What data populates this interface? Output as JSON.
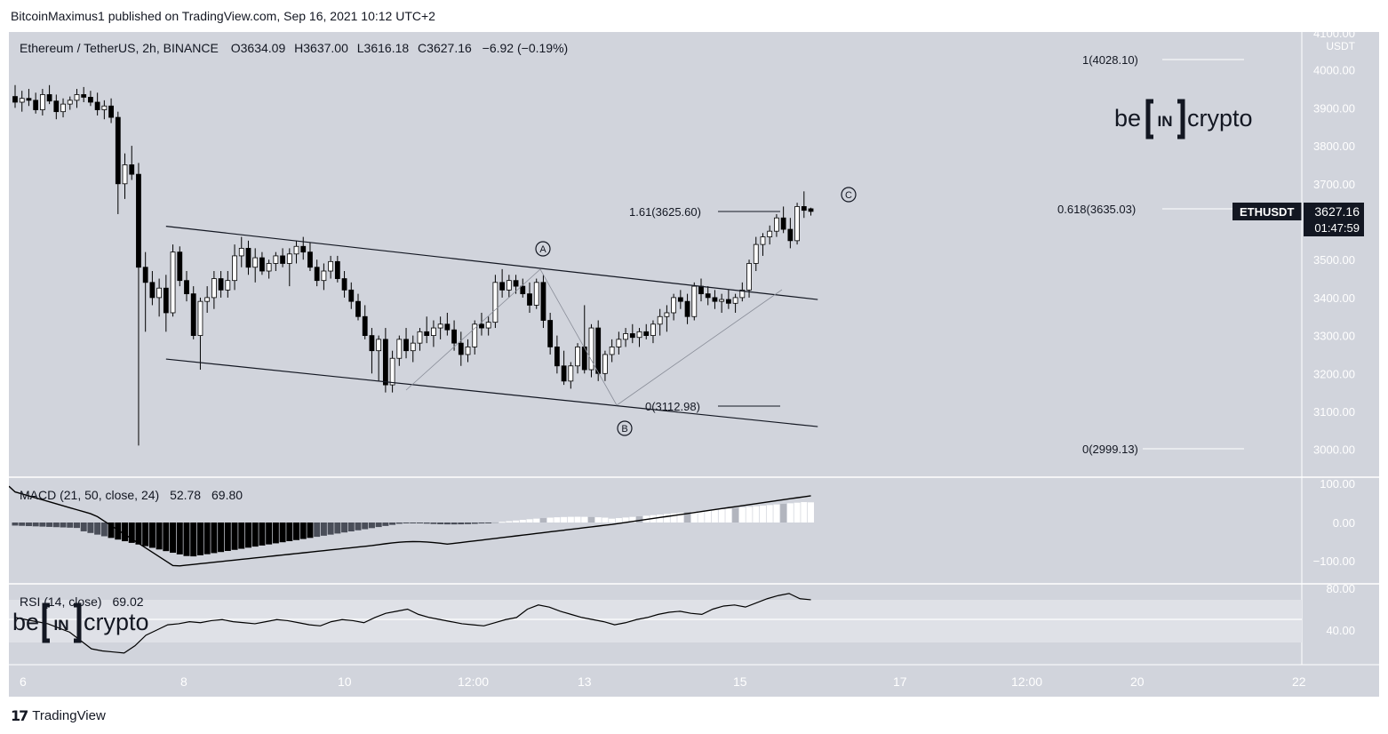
{
  "header": {
    "publisher": "BitcoinMaximus1 published on TradingView.com, Sep 16, 2021 10:12 UTC+2"
  },
  "legend": {
    "symbol": "Ethereum / TetherUS, 2h, BINANCE",
    "o_label": "O",
    "o": "3634.09",
    "h_label": "H",
    "h": "3637.00",
    "l_label": "L",
    "l": "3616.18",
    "c_label": "C",
    "c": "3627.16",
    "change": "−6.92 (−0.19%)"
  },
  "price_scale": {
    "currency": "USDT",
    "ticks": [
      "4100.00",
      "4000.00",
      "3900.00",
      "3800.00",
      "3700.00",
      "3600.00",
      "3500.00",
      "3400.00",
      "3300.00",
      "3200.00",
      "3100.00",
      "3000.00"
    ]
  },
  "price_tag": {
    "ticker": "ETHUSDT",
    "price": "3627.16",
    "countdown": "01:47:59"
  },
  "time_axis": {
    "labels": [
      "6",
      "8",
      "10",
      "12:00",
      "13",
      "15",
      "17",
      "12:00",
      "20",
      "22"
    ]
  },
  "fib_levels": {
    "right_1": "1(4028.10)",
    "right_0618": "0.618(3635.03)",
    "right_0": "0(2999.13)",
    "ext_161": "1.61(3625.60)",
    "ext_0": "0(3112.98)"
  },
  "waves": {
    "a": "A",
    "b": "B",
    "c": "C"
  },
  "brand": {
    "be": "be",
    "in": "IN",
    "crypto": "crypto"
  },
  "macd": {
    "label": "MACD (21, 50, close, 24)",
    "v1": "52.78",
    "v2": "69.80",
    "ticks": [
      "100.00",
      "0.00",
      "−100.00"
    ]
  },
  "rsi": {
    "label": "RSI (14, close)",
    "value": "69.02",
    "ticks": [
      "80.00",
      "40.00"
    ]
  },
  "footer": {
    "brand": "TradingView"
  },
  "colors": {
    "background": "#d1d4dc",
    "candle_up": "#ffffff",
    "candle_down": "#000000",
    "line": "#000000",
    "price_tag_bg": "#131722"
  },
  "chart_data": {
    "type": "candlestick",
    "interval": "2h",
    "ylim": [
      2950,
      4100
    ],
    "trend_lines": [
      {
        "from": [
          "Sep 7 16:00",
          3588
        ],
        "to": [
          "Sep 15 16:00",
          3395
        ]
      },
      {
        "from": [
          "Sep 7 16:00",
          3238
        ],
        "to": [
          "Sep 15 16:00",
          3060
        ]
      }
    ],
    "candles": [
      [
        3930,
        3960,
        3900,
        3915
      ],
      [
        3915,
        3945,
        3890,
        3925
      ],
      [
        3925,
        3950,
        3905,
        3920
      ],
      [
        3920,
        3940,
        3885,
        3895
      ],
      [
        3895,
        3950,
        3880,
        3935
      ],
      [
        3935,
        3960,
        3910,
        3918
      ],
      [
        3918,
        3935,
        3870,
        3890
      ],
      [
        3890,
        3925,
        3875,
        3910
      ],
      [
        3910,
        3930,
        3895,
        3920
      ],
      [
        3920,
        3950,
        3900,
        3935
      ],
      [
        3935,
        3955,
        3915,
        3928
      ],
      [
        3928,
        3945,
        3905,
        3915
      ],
      [
        3915,
        3940,
        3880,
        3895
      ],
      [
        3895,
        3920,
        3870,
        3905
      ],
      [
        3905,
        3925,
        3860,
        3875
      ],
      [
        3875,
        3890,
        3620,
        3700
      ],
      [
        3700,
        3780,
        3660,
        3750
      ],
      [
        3750,
        3800,
        3710,
        3725
      ],
      [
        3725,
        3755,
        3010,
        3480
      ],
      [
        3480,
        3520,
        3310,
        3440
      ],
      [
        3440,
        3470,
        3380,
        3400
      ],
      [
        3400,
        3450,
        3350,
        3425
      ],
      [
        3425,
        3460,
        3310,
        3360
      ],
      [
        3360,
        3540,
        3350,
        3520
      ],
      [
        3520,
        3535,
        3430,
        3445
      ],
      [
        3445,
        3470,
        3390,
        3410
      ],
      [
        3410,
        3430,
        3290,
        3300
      ],
      [
        3300,
        3400,
        3210,
        3390
      ],
      [
        3390,
        3430,
        3360,
        3400
      ],
      [
        3400,
        3470,
        3370,
        3450
      ],
      [
        3450,
        3470,
        3400,
        3420
      ],
      [
        3420,
        3470,
        3400,
        3445
      ],
      [
        3445,
        3540,
        3420,
        3510
      ],
      [
        3510,
        3560,
        3480,
        3530
      ],
      [
        3530,
        3550,
        3460,
        3480
      ],
      [
        3480,
        3530,
        3440,
        3505
      ],
      [
        3505,
        3520,
        3460,
        3470
      ],
      [
        3470,
        3500,
        3450,
        3490
      ],
      [
        3490,
        3520,
        3470,
        3510
      ],
      [
        3510,
        3530,
        3480,
        3490
      ],
      [
        3490,
        3530,
        3430,
        3515
      ],
      [
        3515,
        3550,
        3490,
        3535
      ],
      [
        3535,
        3560,
        3500,
        3520
      ],
      [
        3520,
        3545,
        3470,
        3480
      ],
      [
        3480,
        3500,
        3430,
        3445
      ],
      [
        3445,
        3490,
        3420,
        3470
      ],
      [
        3470,
        3510,
        3450,
        3495
      ],
      [
        3495,
        3510,
        3440,
        3450
      ],
      [
        3450,
        3470,
        3400,
        3420
      ],
      [
        3420,
        3440,
        3370,
        3390
      ],
      [
        3390,
        3410,
        3340,
        3350
      ],
      [
        3350,
        3380,
        3290,
        3300
      ],
      [
        3300,
        3320,
        3200,
        3260
      ],
      [
        3260,
        3300,
        3180,
        3290
      ],
      [
        3290,
        3320,
        3150,
        3170
      ],
      [
        3170,
        3260,
        3150,
        3240
      ],
      [
        3240,
        3300,
        3220,
        3290
      ],
      [
        3290,
        3320,
        3240,
        3260
      ],
      [
        3260,
        3300,
        3230,
        3280
      ],
      [
        3280,
        3320,
        3260,
        3310
      ],
      [
        3310,
        3350,
        3280,
        3300
      ],
      [
        3300,
        3340,
        3270,
        3320
      ],
      [
        3320,
        3350,
        3290,
        3330
      ],
      [
        3330,
        3360,
        3300,
        3315
      ],
      [
        3315,
        3340,
        3260,
        3280
      ],
      [
        3280,
        3310,
        3220,
        3250
      ],
      [
        3250,
        3290,
        3230,
        3270
      ],
      [
        3270,
        3340,
        3250,
        3330
      ],
      [
        3330,
        3360,
        3300,
        3320
      ],
      [
        3320,
        3350,
        3300,
        3335
      ],
      [
        3335,
        3460,
        3320,
        3440
      ],
      [
        3440,
        3475,
        3400,
        3420
      ],
      [
        3420,
        3460,
        3400,
        3445
      ],
      [
        3445,
        3460,
        3410,
        3430
      ],
      [
        3430,
        3450,
        3400,
        3410
      ],
      [
        3410,
        3440,
        3360,
        3380
      ],
      [
        3380,
        3450,
        3370,
        3440
      ],
      [
        3440,
        3460,
        3320,
        3340
      ],
      [
        3340,
        3360,
        3250,
        3270
      ],
      [
        3270,
        3300,
        3200,
        3220
      ],
      [
        3220,
        3260,
        3170,
        3180
      ],
      [
        3180,
        3230,
        3160,
        3220
      ],
      [
        3220,
        3280,
        3200,
        3270
      ],
      [
        3270,
        3380,
        3200,
        3210
      ],
      [
        3210,
        3330,
        3190,
        3320
      ],
      [
        3320,
        3340,
        3180,
        3200
      ],
      [
        3200,
        3260,
        3180,
        3250
      ],
      [
        3250,
        3290,
        3230,
        3270
      ],
      [
        3270,
        3310,
        3250,
        3290
      ],
      [
        3290,
        3320,
        3270,
        3305
      ],
      [
        3305,
        3330,
        3280,
        3295
      ],
      [
        3295,
        3320,
        3270,
        3310
      ],
      [
        3310,
        3330,
        3290,
        3300
      ],
      [
        3300,
        3340,
        3280,
        3330
      ],
      [
        3330,
        3370,
        3300,
        3350
      ],
      [
        3350,
        3380,
        3310,
        3360
      ],
      [
        3360,
        3410,
        3340,
        3400
      ],
      [
        3400,
        3420,
        3370,
        3390
      ],
      [
        3390,
        3410,
        3330,
        3350
      ],
      [
        3350,
        3440,
        3340,
        3430
      ],
      [
        3430,
        3450,
        3390,
        3410
      ],
      [
        3410,
        3430,
        3380,
        3400
      ],
      [
        3400,
        3420,
        3370,
        3390
      ],
      [
        3390,
        3410,
        3360,
        3395
      ],
      [
        3395,
        3420,
        3370,
        3385
      ],
      [
        3385,
        3410,
        3360,
        3400
      ],
      [
        3400,
        3440,
        3390,
        3420
      ],
      [
        3420,
        3500,
        3400,
        3490
      ],
      [
        3490,
        3560,
        3470,
        3540
      ],
      [
        3540,
        3570,
        3510,
        3560
      ],
      [
        3560,
        3590,
        3540,
        3575
      ],
      [
        3575,
        3620,
        3560,
        3610
      ],
      [
        3610,
        3640,
        3570,
        3580
      ],
      [
        3580,
        3610,
        3530,
        3550
      ],
      [
        3550,
        3650,
        3540,
        3640
      ],
      [
        3640,
        3680,
        3610,
        3630
      ],
      [
        3634.09,
        3637,
        3616.18,
        3627.16
      ]
    ],
    "macd_series": {
      "signal_end": 69.8,
      "histogram_end": 52.78
    },
    "rsi_series": {
      "last": 69.02,
      "band": [
        30,
        70
      ],
      "values": [
        52,
        50,
        48,
        46,
        42,
        38,
        30,
        22,
        20,
        19,
        18,
        25,
        35,
        40,
        45,
        46,
        48,
        47,
        49,
        50,
        48,
        47,
        46,
        48,
        50,
        49,
        47,
        45,
        44,
        48,
        50,
        49,
        47,
        52,
        56,
        58,
        60,
        55,
        52,
        50,
        48,
        46,
        45,
        44,
        47,
        50,
        52,
        60,
        64,
        62,
        58,
        55,
        52,
        50,
        48,
        45,
        47,
        50,
        52,
        55,
        57,
        58,
        56,
        55,
        60,
        63,
        64,
        62,
        66,
        70,
        73,
        75,
        70,
        69
      ]
    }
  }
}
